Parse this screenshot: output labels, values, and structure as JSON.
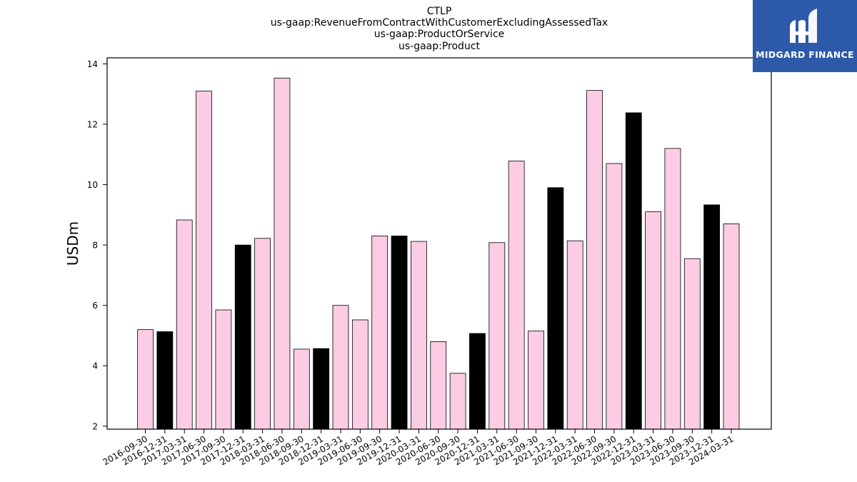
{
  "chart_data": {
    "type": "bar",
    "title_lines": [
      "CTLP",
      "us-gaap:RevenueFromContractWithCustomerExcludingAssessedTax",
      "us-gaap:ProductOrService",
      "us-gaap:Product"
    ],
    "ylabel": "USDm",
    "xlabel": "",
    "ylim": [
      1.9,
      14.2
    ],
    "yticks": [
      2,
      4,
      6,
      8,
      10,
      12,
      14
    ],
    "categories": [
      "2016-09-30",
      "2016-12-31",
      "2017-03-31",
      "2017-06-30",
      "2017-09-30",
      "2017-12-31",
      "2018-03-31",
      "2018-06-30",
      "2018-09-30",
      "2018-12-31",
      "2019-03-31",
      "2019-06-30",
      "2019-09-30",
      "2019-12-31",
      "2020-03-31",
      "2020-06-30",
      "2020-09-30",
      "2020-12-31",
      "2021-03-31",
      "2021-06-30",
      "2021-09-30",
      "2021-12-31",
      "2022-03-31",
      "2022-06-30",
      "2022-09-30",
      "2022-12-31",
      "2023-03-31",
      "2023-06-30",
      "2023-09-30",
      "2023-12-31",
      "2024-03-31"
    ],
    "values": [
      5.2,
      5.13,
      8.83,
      13.1,
      5.85,
      8.0,
      8.22,
      13.53,
      4.55,
      4.57,
      6.0,
      5.52,
      8.3,
      8.3,
      8.12,
      4.8,
      3.75,
      5.07,
      8.08,
      10.78,
      5.15,
      9.9,
      8.14,
      13.12,
      10.7,
      12.38,
      9.1,
      11.2,
      7.55,
      9.33,
      8.7
    ],
    "highlight_categories": [
      "2016-12-31",
      "2017-12-31",
      "2018-12-31",
      "2019-12-31",
      "2020-12-31",
      "2021-12-31",
      "2022-12-31",
      "2023-12-31"
    ],
    "colors": {
      "default": "#fccbe4",
      "highlight": "#000000",
      "edge": "#000000"
    },
    "grid": false,
    "legend": "none"
  },
  "logo": {
    "text": "MIDGARD FINANCE",
    "background": "#2c5aa9"
  }
}
